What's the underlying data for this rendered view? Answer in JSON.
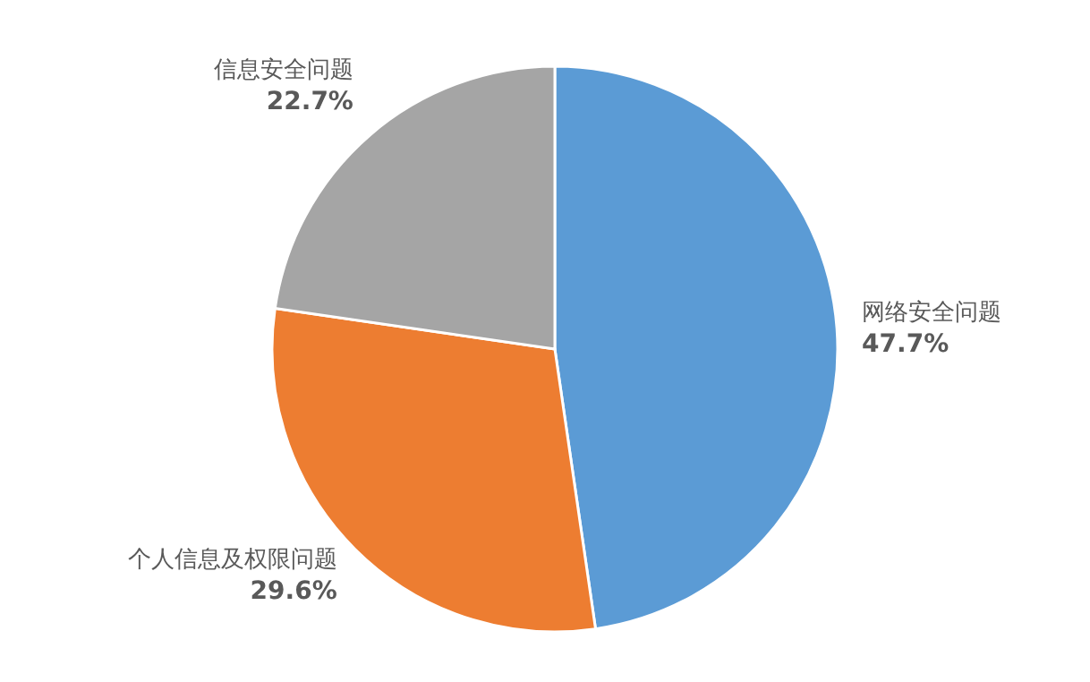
{
  "chart_data": {
    "type": "pie",
    "categories": [
      "网络安全问题",
      "个人信息及权限问题",
      "信息安全问题"
    ],
    "values": [
      47.7,
      29.6,
      22.7
    ],
    "colors": [
      "#5b9bd5",
      "#ed7d31",
      "#a5a5a5"
    ],
    "value_labels": [
      "47.7%",
      "29.6%",
      "22.7%"
    ]
  }
}
